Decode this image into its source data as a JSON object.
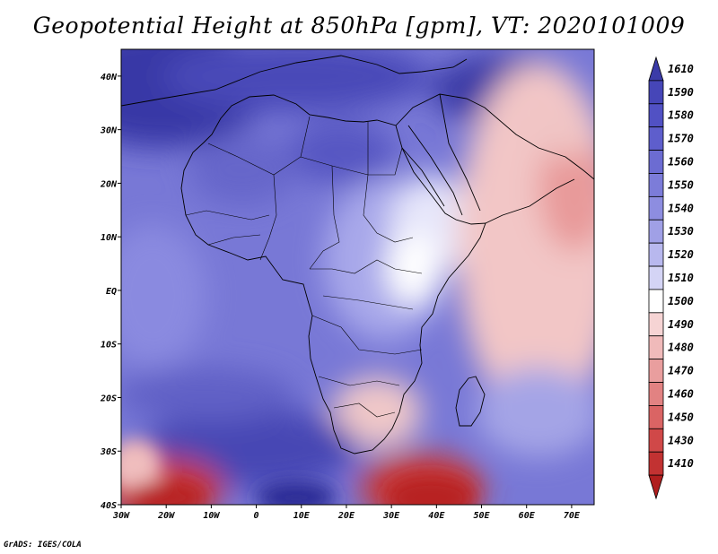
{
  "title": "Geopotential Height at 850hPa [gpm], VT: 2020101009",
  "credit": "GrADS: IGES/COLA",
  "map": {
    "lon_range": [
      -30,
      75
    ],
    "lat_range": [
      -40,
      45
    ],
    "lon_ticks": [
      "30W",
      "20W",
      "10W",
      "0",
      "10E",
      "20E",
      "30E",
      "40E",
      "50E",
      "60E",
      "70E"
    ],
    "lat_ticks": [
      "40S",
      "30S",
      "20S",
      "10S",
      "EQ",
      "10N",
      "20N",
      "30N",
      "40N"
    ]
  },
  "colorbar": {
    "labels": [
      "1610",
      "1590",
      "1580",
      "1570",
      "1560",
      "1550",
      "1540",
      "1530",
      "1520",
      "1510",
      "1500",
      "1490",
      "1480",
      "1470",
      "1460",
      "1450",
      "1430",
      "1410"
    ],
    "colors": [
      "#3b3ba8",
      "#4646b8",
      "#5151c4",
      "#5e5ecc",
      "#6c6cd2",
      "#7c7cd9",
      "#8d8de0",
      "#a0a0e6",
      "#b8b8ee",
      "#d4d4f5",
      "#ffffff",
      "#f6d4d4",
      "#f0baba",
      "#e99e9e",
      "#e28282",
      "#da6464",
      "#d04848",
      "#c23232",
      "#b01e1e"
    ]
  }
}
